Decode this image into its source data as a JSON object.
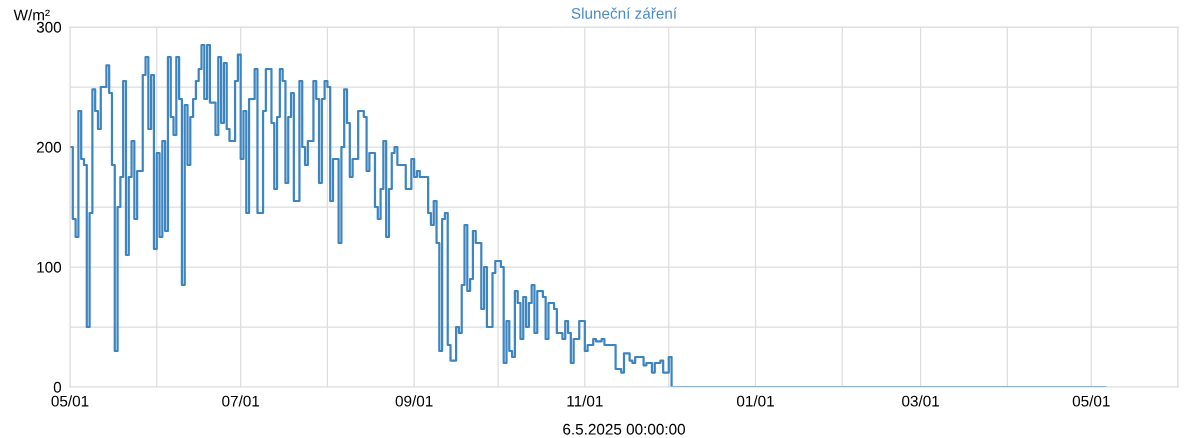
{
  "chart_data": {
    "type": "step",
    "title": "Sluneční záření",
    "ylabel": "W/m²",
    "xlabel": "6.5.2025 00:00:00",
    "xlim": [
      "2024-05-01",
      "2025-06-01"
    ],
    "xticks": [
      {
        "value": "2024-05-01",
        "label": "05/01"
      },
      {
        "value": "2024-06-01",
        "label": null
      },
      {
        "value": "2024-07-01",
        "label": "07/01"
      },
      {
        "value": "2024-08-01",
        "label": null
      },
      {
        "value": "2024-09-01",
        "label": "09/01"
      },
      {
        "value": "2024-10-01",
        "label": null
      },
      {
        "value": "2024-11-01",
        "label": "11/01"
      },
      {
        "value": "2024-12-01",
        "label": null
      },
      {
        "value": "2025-01-01",
        "label": "01/01"
      },
      {
        "value": "2025-02-01",
        "label": null
      },
      {
        "value": "2025-03-01",
        "label": "03/01"
      },
      {
        "value": "2025-04-01",
        "label": null
      },
      {
        "value": "2025-05-01",
        "label": "05/01"
      },
      {
        "value": "2025-06-01",
        "label": null
      }
    ],
    "ylim": [
      0,
      300
    ],
    "yticks": [
      0,
      {
        "value": 50,
        "label": null
      },
      100,
      {
        "value": 150,
        "label": null
      },
      200,
      {
        "value": 250,
        "label": null
      },
      300
    ],
    "grid": true,
    "line_style": "solid",
    "marker": "none",
    "series": [
      {
        "color": "#3d85c0",
        "x": [
          "2024-05-01",
          "2024-05-02",
          "2024-05-03",
          "2024-05-04",
          "2024-05-05",
          "2024-05-06",
          "2024-05-07",
          "2024-05-08",
          "2024-05-09",
          "2024-05-10",
          "2024-05-11",
          "2024-05-12",
          "2024-05-14",
          "2024-05-15",
          "2024-05-16",
          "2024-05-17",
          "2024-05-18",
          "2024-05-19",
          "2024-05-20",
          "2024-05-21",
          "2024-05-22",
          "2024-05-23",
          "2024-05-24",
          "2024-05-25",
          "2024-05-27",
          "2024-05-28",
          "2024-05-29",
          "2024-05-30",
          "2024-05-31",
          "2024-06-01",
          "2024-06-02",
          "2024-06-03",
          "2024-06-04",
          "2024-06-05",
          "2024-06-06",
          "2024-06-07",
          "2024-06-08",
          "2024-06-09",
          "2024-06-10",
          "2024-06-11",
          "2024-06-12",
          "2024-06-13",
          "2024-06-14",
          "2024-06-15",
          "2024-06-16",
          "2024-06-17",
          "2024-06-18",
          "2024-06-19",
          "2024-06-20",
          "2024-06-22",
          "2024-06-23",
          "2024-06-24",
          "2024-06-25",
          "2024-06-26",
          "2024-06-27",
          "2024-06-29",
          "2024-06-30",
          "2024-07-01",
          "2024-07-02",
          "2024-07-03",
          "2024-07-04",
          "2024-07-06",
          "2024-07-07",
          "2024-07-09",
          "2024-07-10",
          "2024-07-12",
          "2024-07-13",
          "2024-07-14",
          "2024-07-15",
          "2024-07-16",
          "2024-07-17",
          "2024-07-18",
          "2024-07-19",
          "2024-07-20",
          "2024-07-22",
          "2024-07-23",
          "2024-07-24",
          "2024-07-25",
          "2024-07-27",
          "2024-07-28",
          "2024-07-29",
          "2024-07-30",
          "2024-07-31",
          "2024-08-01",
          "2024-08-02",
          "2024-08-03",
          "2024-08-05",
          "2024-08-06",
          "2024-08-07",
          "2024-08-08",
          "2024-08-09",
          "2024-08-10",
          "2024-08-11",
          "2024-08-12",
          "2024-08-14",
          "2024-08-15",
          "2024-08-16",
          "2024-08-18",
          "2024-08-19",
          "2024-08-20",
          "2024-08-21",
          "2024-08-22",
          "2024-08-23",
          "2024-08-24",
          "2024-08-25",
          "2024-08-26",
          "2024-08-28",
          "2024-08-29",
          "2024-08-31",
          "2024-09-01",
          "2024-09-02",
          "2024-09-03",
          "2024-09-05",
          "2024-09-06",
          "2024-09-07",
          "2024-09-08",
          "2024-09-09",
          "2024-09-10",
          "2024-09-11",
          "2024-09-12",
          "2024-09-13",
          "2024-09-14",
          "2024-09-16",
          "2024-09-17",
          "2024-09-18",
          "2024-09-19",
          "2024-09-20",
          "2024-09-21",
          "2024-09-22",
          "2024-09-23",
          "2024-09-25",
          "2024-09-26",
          "2024-09-27",
          "2024-09-29",
          "2024-09-30",
          "2024-10-02",
          "2024-10-03",
          "2024-10-04",
          "2024-10-05",
          "2024-10-06",
          "2024-10-07",
          "2024-10-08",
          "2024-10-09",
          "2024-10-10",
          "2024-10-11",
          "2024-10-12",
          "2024-10-13",
          "2024-10-14",
          "2024-10-15",
          "2024-10-17",
          "2024-10-18",
          "2024-10-19",
          "2024-10-21",
          "2024-10-22",
          "2024-10-24",
          "2024-10-25",
          "2024-10-26",
          "2024-10-27",
          "2024-10-28",
          "2024-10-30",
          "2024-11-01",
          "2024-11-02",
          "2024-11-04",
          "2024-11-05",
          "2024-11-07",
          "2024-11-08",
          "2024-11-10",
          "2024-11-12",
          "2024-11-14",
          "2024-11-15",
          "2024-11-17",
          "2024-11-18",
          "2024-11-19",
          "2024-11-22",
          "2024-11-23",
          "2024-11-25",
          "2024-11-26",
          "2024-11-28",
          "2024-11-29",
          "2024-12-01",
          "2024-12-02",
          "2025-05-06"
        ],
        "values": [
          200,
          140,
          125,
          230,
          190,
          185,
          50,
          145,
          248,
          230,
          215,
          250,
          268,
          245,
          185,
          30,
          150,
          175,
          255,
          110,
          175,
          205,
          140,
          180,
          260,
          275,
          215,
          260,
          115,
          195,
          125,
          205,
          130,
          275,
          225,
          210,
          275,
          240,
          85,
          235,
          185,
          225,
          240,
          255,
          265,
          285,
          240,
          285,
          237,
          210,
          275,
          220,
          270,
          215,
          205,
          255,
          277,
          190,
          230,
          145,
          240,
          265,
          145,
          230,
          265,
          220,
          165,
          225,
          265,
          255,
          170,
          225,
          245,
          155,
          255,
          200,
          185,
          205,
          255,
          240,
          170,
          240,
          255,
          250,
          155,
          190,
          120,
          200,
          248,
          220,
          175,
          190,
          190,
          230,
          225,
          180,
          195,
          150,
          140,
          165,
          205,
          125,
          165,
          195,
          200,
          185,
          185,
          165,
          190,
          175,
          180,
          175,
          175,
          145,
          135,
          155,
          120,
          30,
          140,
          145,
          35,
          22,
          50,
          45,
          85,
          135,
          80,
          90,
          130,
          120,
          65,
          100,
          50,
          95,
          105,
          100,
          20,
          55,
          30,
          25,
          80,
          70,
          40,
          75,
          50,
          70,
          85,
          45,
          80,
          75,
          40,
          70,
          65,
          45,
          40,
          55,
          45,
          20,
          40,
          55,
          30,
          35,
          40,
          38,
          40,
          35,
          35,
          15,
          12,
          28,
          22,
          20,
          25,
          18,
          20,
          12,
          20,
          22,
          12,
          25,
          0,
          0
        ]
      }
    ]
  }
}
